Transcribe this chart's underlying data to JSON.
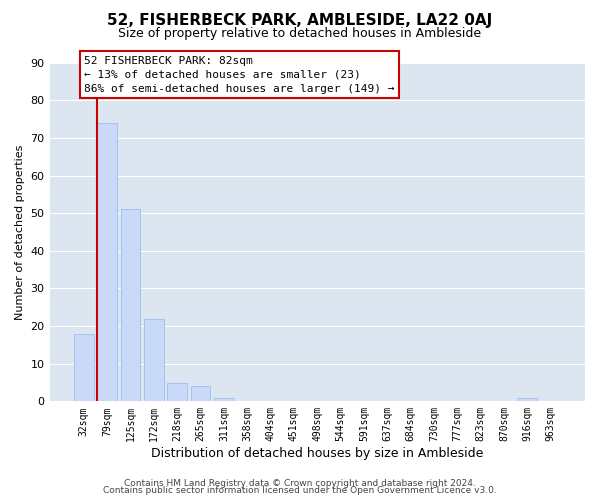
{
  "title": "52, FISHERBECK PARK, AMBLESIDE, LA22 0AJ",
  "subtitle": "Size of property relative to detached houses in Ambleside",
  "xlabel": "Distribution of detached houses by size in Ambleside",
  "ylabel": "Number of detached properties",
  "footer_lines": [
    "Contains HM Land Registry data © Crown copyright and database right 2024.",
    "Contains public sector information licensed under the Open Government Licence v3.0."
  ],
  "bin_labels": [
    "32sqm",
    "79sqm",
    "125sqm",
    "172sqm",
    "218sqm",
    "265sqm",
    "311sqm",
    "358sqm",
    "404sqm",
    "451sqm",
    "498sqm",
    "544sqm",
    "591sqm",
    "637sqm",
    "684sqm",
    "730sqm",
    "777sqm",
    "823sqm",
    "870sqm",
    "916sqm",
    "963sqm"
  ],
  "bar_heights": [
    18,
    74,
    51,
    22,
    5,
    4,
    1,
    0,
    0,
    0,
    0,
    0,
    0,
    0,
    0,
    0,
    0,
    0,
    0,
    1,
    0
  ],
  "bar_color": "#c9daf8",
  "bar_edge_color": "#a4c2f4",
  "ylim": [
    0,
    90
  ],
  "yticks": [
    0,
    10,
    20,
    30,
    40,
    50,
    60,
    70,
    80,
    90
  ],
  "subject_line_color": "#cc0000",
  "annotation_box_text": "52 FISHERBECK PARK: 82sqm\n← 13% of detached houses are smaller (23)\n86% of semi-detached houses are larger (149) →",
  "grid_color": "#ffffff",
  "background_color": "#dce6f1",
  "title_fontsize": 11,
  "subtitle_fontsize": 9,
  "ylabel_fontsize": 8,
  "xlabel_fontsize": 9,
  "tick_fontsize": 7,
  "footer_fontsize": 6.5,
  "annotation_fontsize": 8
}
